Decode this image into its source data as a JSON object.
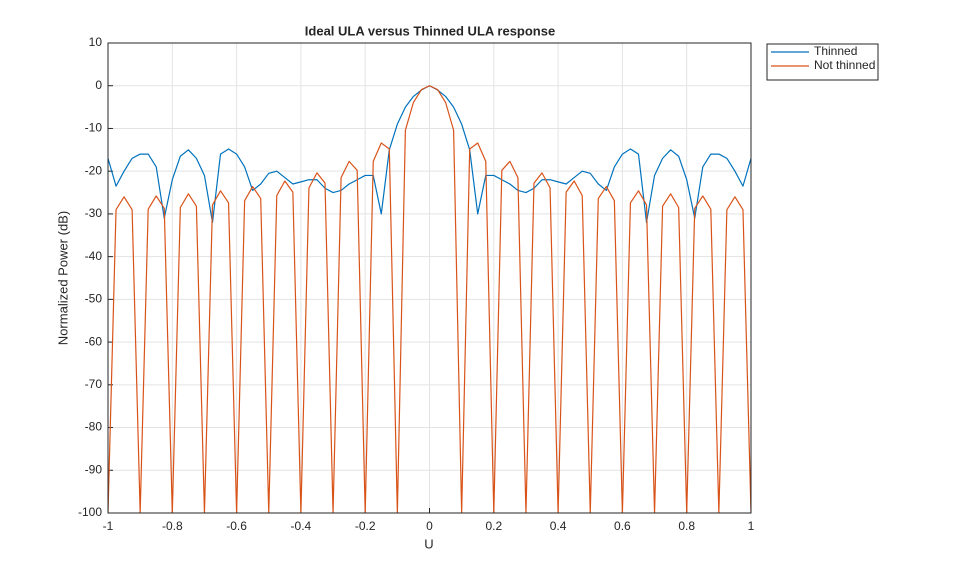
{
  "chart_data": {
    "type": "line",
    "title": "Ideal ULA versus Thinned ULA response",
    "x_label": "U",
    "y_label": "Normalized Power (dB)",
    "x": [
      -1,
      -0.975,
      -0.95,
      -0.925,
      -0.9,
      -0.875,
      -0.85,
      -0.825,
      -0.8,
      -0.775,
      -0.75,
      -0.725,
      -0.7,
      -0.675,
      -0.65,
      -0.625,
      -0.6,
      -0.575,
      -0.55,
      -0.525,
      -0.5,
      -0.475,
      -0.45,
      -0.425,
      -0.4,
      -0.375,
      -0.35,
      -0.325,
      -0.3,
      -0.275,
      -0.25,
      -0.225,
      -0.2,
      -0.175,
      -0.15,
      -0.125,
      -0.1,
      -0.075,
      -0.05,
      -0.025,
      0,
      0.025,
      0.05,
      0.075,
      0.1,
      0.125,
      0.15,
      0.175,
      0.2,
      0.225,
      0.25,
      0.275,
      0.3,
      0.325,
      0.35,
      0.375,
      0.4,
      0.425,
      0.45,
      0.475,
      0.5,
      0.525,
      0.55,
      0.575,
      0.6,
      0.625,
      0.65,
      0.675,
      0.7,
      0.725,
      0.75,
      0.775,
      0.8,
      0.825,
      0.85,
      0.875,
      0.9,
      0.925,
      0.95,
      0.975,
      1
    ],
    "series": [
      {
        "name": "Thinned",
        "color": "#0072bd",
        "values": [
          -17,
          -23.5,
          -20,
          -17,
          -16,
          -16,
          -19,
          -31,
          -22,
          -16.5,
          -15,
          -17,
          -21,
          -32,
          -16,
          -14.8,
          -16,
          -19,
          -24.5,
          -23,
          -20.5,
          -20,
          -21.5,
          -23,
          -22.5,
          -22,
          -22,
          -24,
          -25,
          -24.5,
          -23,
          -22,
          -21,
          -21,
          -30,
          -15,
          -9,
          -5,
          -2.5,
          -1,
          0,
          -1,
          -2.5,
          -5,
          -9,
          -15,
          -30,
          -21,
          -21,
          -22,
          -23,
          -24.5,
          -25,
          -24,
          -22,
          -22,
          -22.5,
          -23,
          -21.5,
          -20,
          -20.5,
          -23,
          -24.5,
          -19,
          -16,
          -14.8,
          -16,
          -32,
          -21,
          -17,
          -15,
          -16.5,
          -22,
          -31,
          -19,
          -16,
          -16,
          -17,
          -20,
          -23.5,
          -17
        ]
      },
      {
        "name": "Not thinned",
        "color": "#d95319",
        "values": [
          -100,
          -29.0,
          -26.0,
          -29.0,
          -100,
          -28.9,
          -25.8,
          -28.7,
          -100,
          -28.5,
          -25.3,
          -28.2,
          -100,
          -27.9,
          -24.6,
          -27.4,
          -100,
          -26.9,
          -23.6,
          -26.4,
          -100,
          -25.7,
          -22.3,
          -24.9,
          -100,
          -23.9,
          -20.4,
          -22.8,
          -100,
          -21.5,
          -17.7,
          -19.8,
          -100,
          -17.7,
          -13.4,
          -14.8,
          -100,
          -10.4,
          -3.9,
          -0.9,
          0,
          -0.9,
          -3.9,
          -10.4,
          -100,
          -14.8,
          -13.4,
          -17.7,
          -100,
          -19.8,
          -17.7,
          -21.5,
          -100,
          -22.8,
          -20.4,
          -23.9,
          -100,
          -24.9,
          -22.3,
          -25.7,
          -100,
          -26.4,
          -23.6,
          -26.9,
          -100,
          -27.4,
          -24.6,
          -27.9,
          -100,
          -28.2,
          -25.3,
          -28.5,
          -100,
          -28.7,
          -25.8,
          -28.9,
          -100,
          -29.0,
          -26.0,
          -29.0,
          -100
        ]
      }
    ],
    "xlim": [
      -1,
      1
    ],
    "ylim": [
      -100,
      10
    ],
    "xticks": [
      -1,
      -0.8,
      -0.6,
      -0.4,
      -0.2,
      0,
      0.2,
      0.4,
      0.6,
      0.8,
      1
    ],
    "yticks": [
      -100,
      -90,
      -80,
      -70,
      -60,
      -50,
      -40,
      -30,
      -20,
      -10,
      0,
      10
    ],
    "grid": true,
    "legend": "outside-top-right"
  }
}
